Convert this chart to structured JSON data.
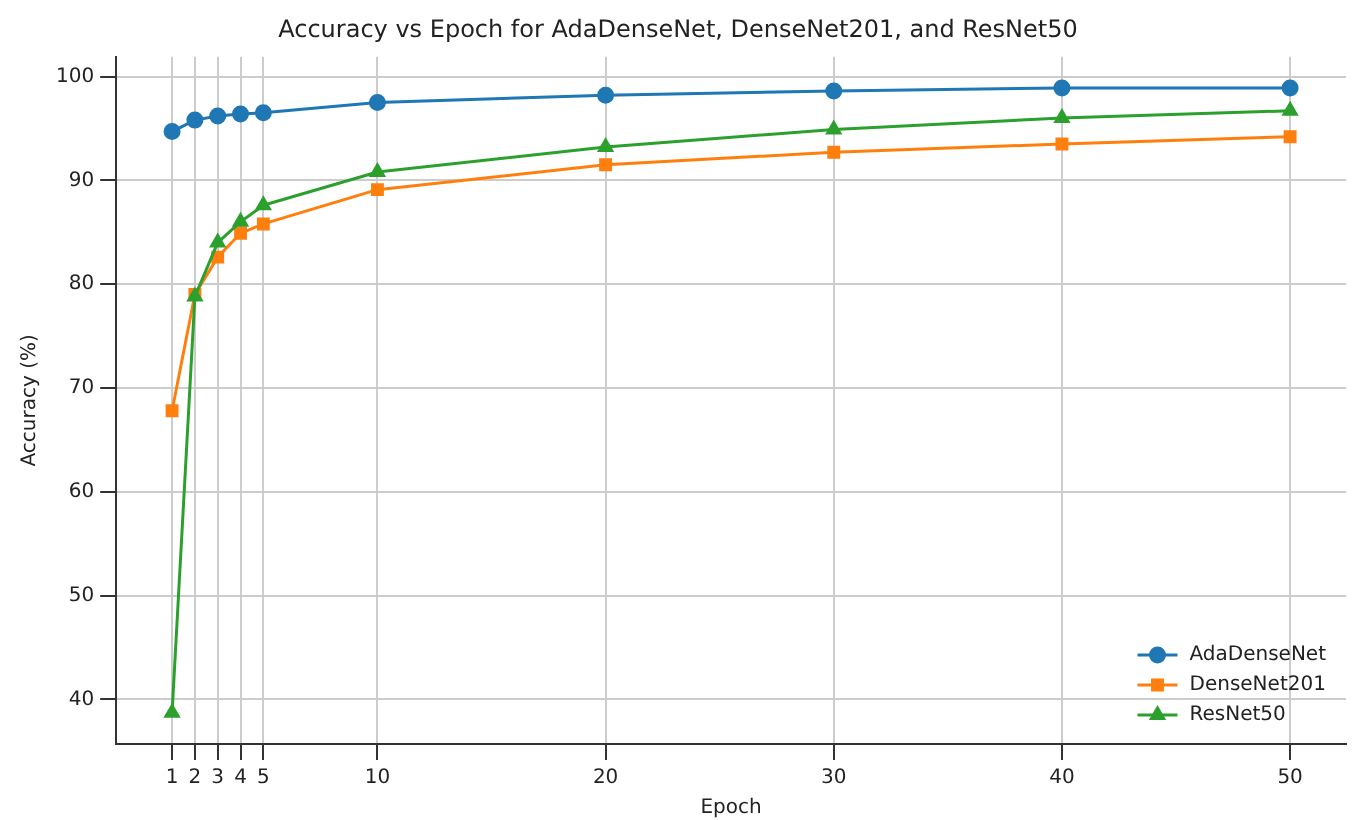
{
  "chart_data": {
    "type": "line",
    "title": "Accuracy vs Epoch for AdaDenseNet, DenseNet201, and ResNet50",
    "xlabel": "Epoch",
    "ylabel": "Accuracy (%)",
    "x": [
      1,
      2,
      3,
      4,
      5,
      10,
      20,
      30,
      40,
      50
    ],
    "series": [
      {
        "name": "AdaDenseNet",
        "color": "#1f77b4",
        "marker": "circle",
        "values": [
          94.7,
          95.8,
          96.2,
          96.4,
          96.5,
          97.5,
          98.2,
          98.6,
          98.9,
          98.9
        ]
      },
      {
        "name": "DenseNet201",
        "color": "#ff7f0e",
        "marker": "square",
        "values": [
          67.8,
          79.0,
          82.6,
          84.9,
          85.8,
          89.1,
          91.5,
          92.7,
          93.5,
          94.2
        ]
      },
      {
        "name": "ResNet50",
        "color": "#2ca02c",
        "marker": "triangle",
        "values": [
          38.7,
          78.8,
          84.0,
          86.0,
          87.6,
          90.8,
          93.2,
          94.9,
          96.0,
          96.7
        ]
      }
    ],
    "xlim": [
      -1.45,
      52.45
    ],
    "xticks": [
      1,
      2,
      3,
      4,
      5,
      10,
      20,
      30,
      40,
      50
    ],
    "ylim": [
      35.7,
      101.9
    ],
    "yticks": [
      40,
      50,
      60,
      70,
      80,
      90,
      100
    ],
    "grid": true,
    "legend": "bottom right",
    "line_style": "solid"
  }
}
